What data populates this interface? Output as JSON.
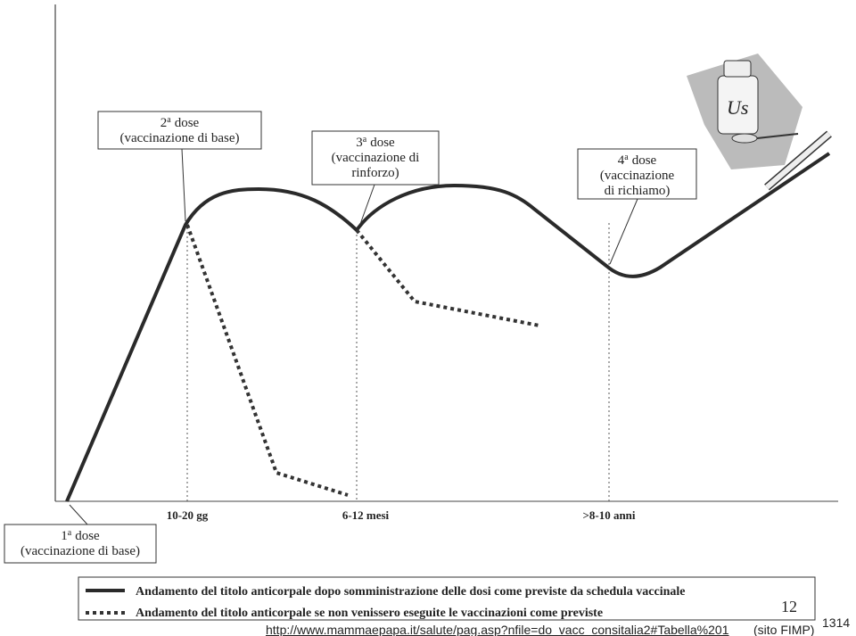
{
  "boxes": [
    {
      "num": "1",
      "sup": "a",
      "word": "dose",
      "lines": [
        "(vaccinazione di base)"
      ]
    },
    {
      "num": "2",
      "sup": "a",
      "word": "dose",
      "lines": [
        "(vaccinazione di base)"
      ]
    },
    {
      "num": "3",
      "sup": "a",
      "word": "dose",
      "lines": [
        "(vaccinazione di",
        "rinforzo)"
      ]
    },
    {
      "num": "4",
      "sup": "a",
      "word": "dose",
      "lines": [
        "(vaccinazione",
        "di richiamo)"
      ]
    }
  ],
  "x_labels": [
    "10-20 gg",
    "6-12 mesi",
    ">8-10 anni"
  ],
  "legend": [
    "Andamento del titolo anticorpale dopo somministrazione delle dosi come previste da schedula vaccinale",
    "Andamento del titolo anticorpale se non venissero eseguite le vaccinazioni come previste"
  ],
  "footer": {
    "page": "12",
    "url": "http://www.mammaepapa.it/salute/pag.asp?nfile=do_vacc_consitalia2#Tabella%201",
    "source": "(sito FIMP)",
    "number": "1314"
  }
}
